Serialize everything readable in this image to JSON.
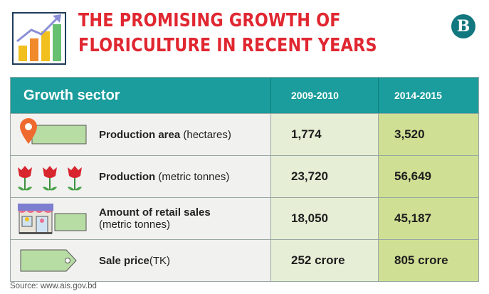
{
  "header": {
    "title": "THE PROMISING GROWTH OF FLORICULTURE IN RECENT YEARS",
    "logo_letter": "B"
  },
  "table": {
    "headers": [
      "Growth sector",
      "2009-2010",
      "2014-2015"
    ],
    "rows": [
      {
        "label": "Production area",
        "unit": " (hectares)",
        "icon": "map-pin-tag-icon",
        "y2009_2010": "1,774",
        "y2014_2015": "3,520"
      },
      {
        "label": "Production",
        "unit": " (metric tonnes)",
        "icon": "roses-icon",
        "y2009_2010": "23,720",
        "y2014_2015": "56,649"
      },
      {
        "label": "Amount of retail sales",
        "unit": "(metric tonnes)",
        "icon": "flower-shop-icon",
        "y2009_2010": "18,050",
        "y2014_2015": "45,187"
      },
      {
        "label": "Sale price",
        "unit": "(TK)",
        "icon": "price-tag-icon",
        "y2009_2010": "252 crore",
        "y2014_2015": "805 crore"
      }
    ]
  },
  "chart_data": {
    "type": "table",
    "columns": [
      "Growth sector",
      "2009-2010",
      "2014-2015"
    ],
    "rows": [
      [
        "Production area (hectares)",
        1774,
        3520
      ],
      [
        "Production (metric tonnes)",
        23720,
        56649
      ],
      [
        "Amount of retail sales (metric tonnes)",
        18050,
        45187
      ],
      [
        "Sale price(TK)",
        "252 crore",
        "805 crore"
      ]
    ]
  },
  "source": "Source: www.ais.gov.bd",
  "colors": {
    "title": "#e02731",
    "header_teal": "#1a9d9c",
    "col_2009_bg": "#e6eed6",
    "col_2015_bg": "#cfe094",
    "tag_green": "#b7dca4",
    "logo": "#12777e"
  }
}
